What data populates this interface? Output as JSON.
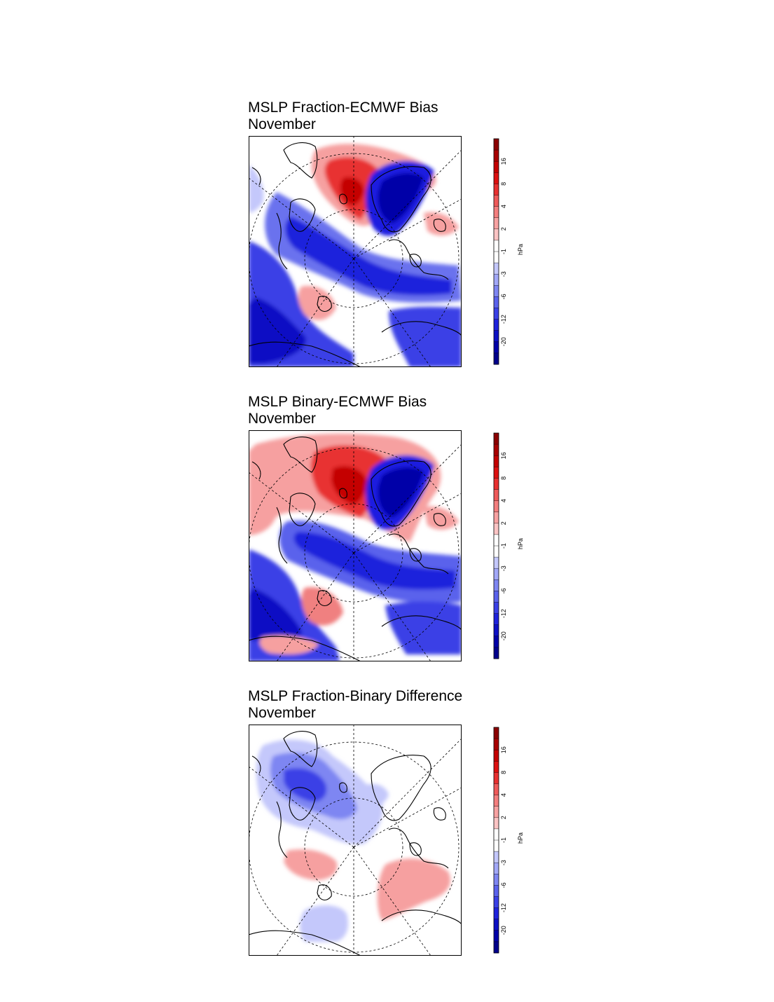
{
  "panels": [
    {
      "title": "MSLP Fraction-ECMWF Bias",
      "subtitle": "November"
    },
    {
      "title": "MSLP Binary-ECMWF Bias",
      "subtitle": "November"
    },
    {
      "title": "MSLP Fraction-Binary Difference",
      "subtitle": "November"
    }
  ],
  "colorbar": {
    "unit": "hPa",
    "tick_labels": [
      "16",
      "8",
      "4",
      "2",
      "-1",
      "-3",
      "-6",
      "-12",
      "-20"
    ],
    "colors": [
      "#8b0000",
      "#a80000",
      "#c40000",
      "#dd1010",
      "#e83030",
      "#ef5a5a",
      "#f47e7e",
      "#f8a2a2",
      "#fbc4c4",
      "#ffffff",
      "#ffffff",
      "#c4c8fb",
      "#a2a8f8",
      "#7e86f2",
      "#5a62ec",
      "#3a40e6",
      "#1e22dc",
      "#0d10c4",
      "#0000a8",
      "#00008b"
    ]
  },
  "colors": {
    "positive": "#e63030",
    "negative": "#1a1ae0",
    "land_outline": "#000000"
  }
}
